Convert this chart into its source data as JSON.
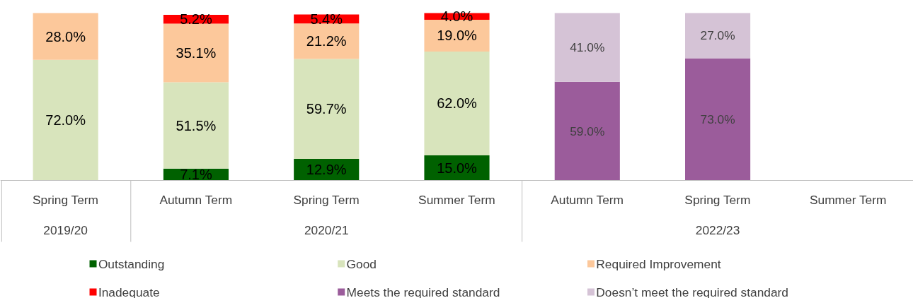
{
  "chart_data": {
    "type": "bar",
    "stacked": true,
    "categories": [
      "Spring Term",
      "Autumn Term",
      "Spring Term",
      "Summer Term",
      "Autumn Term",
      "Spring Term",
      "Summer Term"
    ],
    "annotations": [
      "2019/20",
      "2020/21",
      "2022/23"
    ],
    "ylim": [
      0,
      100
    ],
    "legend": "bottom",
    "series": [
      {
        "name": "Outstanding",
        "color": "#006100",
        "values": [
          null,
          7.1,
          12.9,
          15.0,
          null,
          null,
          null
        ],
        "value_labels": [
          null,
          "7.1%",
          "12.9%",
          "15.0%",
          null,
          null,
          null
        ]
      },
      {
        "name": "Good",
        "color": "#d8e4bc",
        "values": [
          72.0,
          51.5,
          59.7,
          62.0,
          null,
          null,
          null
        ],
        "value_labels": [
          "72.0%",
          "51.5%",
          "59.7%",
          "62.0%",
          null,
          null,
          null
        ]
      },
      {
        "name": "Required Improvement",
        "color": "#fcc89b",
        "values": [
          28.0,
          35.1,
          21.2,
          19.0,
          null,
          null,
          null
        ],
        "value_labels": [
          "28.0%",
          "35.1%",
          "21.2%",
          "19.0%",
          null,
          null,
          null
        ]
      },
      {
        "name": "Inadequate",
        "color": "#ff0000",
        "values": [
          null,
          5.2,
          5.4,
          4.0,
          null,
          null,
          null
        ],
        "value_labels": [
          null,
          "5.2%",
          "5.4%",
          "4.0%",
          null,
          null,
          null
        ]
      },
      {
        "name": "Meets the required standard",
        "color": "#9b5c9b",
        "values": [
          null,
          null,
          null,
          null,
          59.0,
          73.0,
          null
        ],
        "value_labels": [
          null,
          null,
          null,
          null,
          "59.0%",
          "73.0%",
          null
        ]
      },
      {
        "name": "Doesn’t meet the required standard",
        "color": "#d5c3d6",
        "values": [
          null,
          null,
          null,
          null,
          41.0,
          27.0,
          null
        ],
        "value_labels": [
          null,
          null,
          null,
          null,
          "41.0%",
          "27.0%",
          null
        ]
      }
    ]
  }
}
